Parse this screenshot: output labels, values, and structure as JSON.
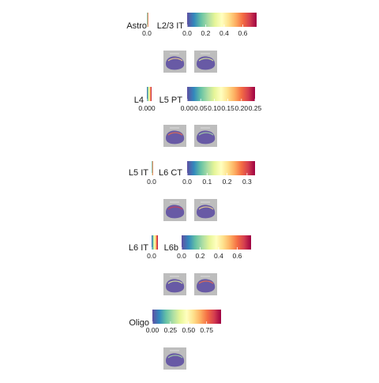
{
  "chart_data": {
    "type": "heatmap",
    "description_note": "",
    "colormap": [
      "#5e4fa2",
      "#3288bd",
      "#66c2a5",
      "#abdda4",
      "#e6f598",
      "#ffffbf",
      "#fee08b",
      "#fdae61",
      "#f46d43",
      "#d53e4f",
      "#9e0142"
    ],
    "panels": [
      {
        "name": "Astro",
        "title": "Astro",
        "range": [
          0,
          0.0
        ],
        "ticks": [
          "0.0"
        ]
      },
      {
        "name": "L2/3 IT",
        "title": "L2/3 IT",
        "range": [
          0,
          0.75
        ],
        "ticks": [
          "0.0",
          "0.2",
          "0.4",
          "0.6"
        ]
      },
      {
        "name": "L4",
        "title": "L4",
        "range": [
          0,
          0.001
        ],
        "ticks": [
          "0.000"
        ]
      },
      {
        "name": "L5 PT",
        "title": "L5 PT",
        "range": [
          0,
          0.25
        ],
        "ticks": [
          "0.00",
          "0.05",
          "0.10",
          "0.15",
          "0.20",
          "0.25"
        ]
      },
      {
        "name": "L5 IT",
        "title": "L5 IT",
        "range": [
          0,
          0.0
        ],
        "ticks": [
          "0.0"
        ]
      },
      {
        "name": "L6 CT",
        "title": "L6 CT",
        "range": [
          0,
          0.34
        ],
        "ticks": [
          "0.0",
          "0.1",
          "0.2",
          "0.3"
        ]
      },
      {
        "name": "L6 IT",
        "title": "L6 IT",
        "range": [
          0,
          0.0
        ],
        "ticks": [
          "0.0"
        ]
      },
      {
        "name": "L6b",
        "title": "L6b",
        "range": [
          0,
          0.75
        ],
        "ticks": [
          "0.0",
          "0.2",
          "0.4",
          "0.6"
        ]
      },
      {
        "name": "Oligo",
        "title": "Oligo",
        "range": [
          0,
          0.95
        ],
        "ticks": [
          "0.00",
          "0.25",
          "0.50",
          "0.75"
        ]
      }
    ]
  }
}
